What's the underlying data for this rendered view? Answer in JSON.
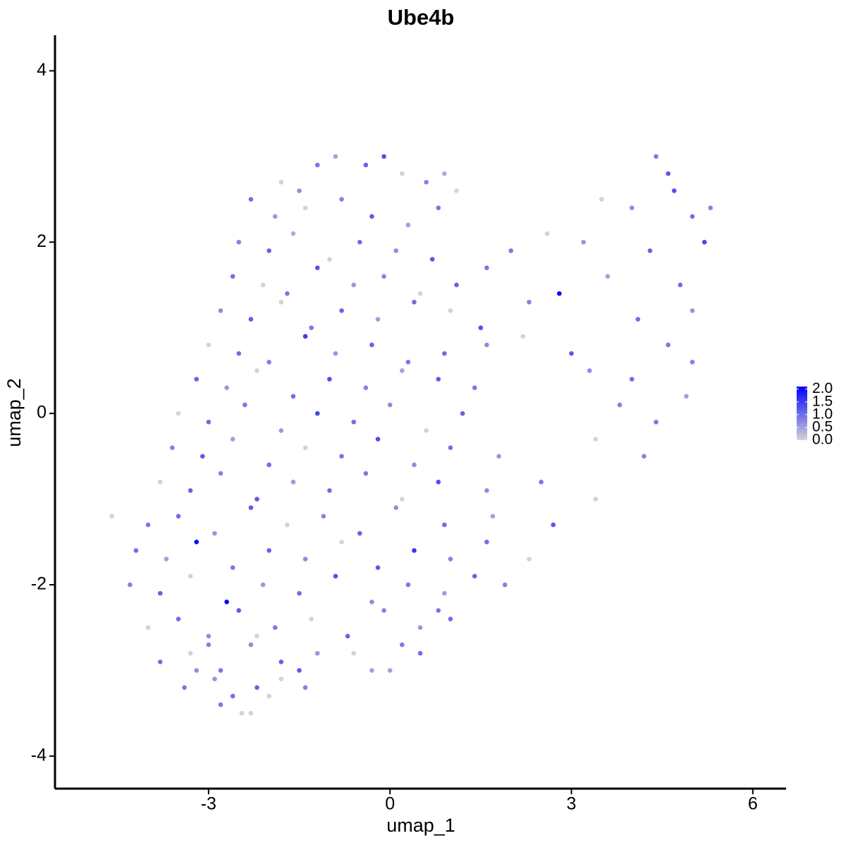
{
  "chart_data": {
    "type": "scatter",
    "title": "Ube4b",
    "x_label": "umap_1",
    "y_label": "umap_2",
    "xlim": [
      -5.54,
      6.55
    ],
    "ylim": [
      -4.38,
      4.415
    ],
    "xticks": [
      -3,
      0,
      3,
      6
    ],
    "yticks": [
      -4,
      -2,
      0,
      2,
      4
    ],
    "colors": [
      "#d3d3d3",
      "#0000ff"
    ],
    "colorlim": [
      0,
      2.1
    ],
    "colorticks": [
      {
        "value": 0,
        "label": "0.0"
      },
      {
        "value": 0.5,
        "label": "0.5"
      },
      {
        "value": 1,
        "label": "1.0"
      },
      {
        "value": 1.5,
        "label": "1.5"
      },
      {
        "value": 2,
        "label": "2.0"
      }
    ],
    "x": [
      -1.8,
      -1.2,
      -0.9,
      -0.4,
      -0.1,
      0.2,
      0.6,
      1.1,
      4.4,
      4.6,
      -1.5,
      0.9,
      -2.3,
      -1.9,
      -1.4,
      -0.8,
      -0.3,
      0.3,
      0.8,
      3.5,
      4.0,
      4.7,
      5.0,
      5.3,
      -2.5,
      -2.0,
      -1.6,
      -1.0,
      -0.5,
      0.1,
      0.7,
      2.0,
      2.6,
      3.2,
      4.3,
      5.2,
      -2.6,
      -2.1,
      -1.7,
      -1.2,
      -0.6,
      -0.1,
      0.5,
      1.1,
      1.6,
      2.8,
      3.6,
      4.8,
      -2.8,
      -2.3,
      -1.8,
      -1.3,
      -0.8,
      -0.2,
      0.4,
      1.0,
      1.5,
      2.3,
      4.1,
      5.0,
      -3.0,
      -2.5,
      -2.0,
      -1.4,
      -0.9,
      -0.3,
      0.3,
      0.9,
      1.6,
      2.2,
      3.0,
      4.6,
      -3.2,
      -2.7,
      -2.2,
      -1.6,
      -1.0,
      -0.4,
      0.2,
      0.8,
      1.4,
      3.3,
      4.0,
      5.0,
      -3.5,
      -3.0,
      -2.4,
      -1.8,
      -1.2,
      -0.6,
      0.0,
      0.6,
      1.2,
      3.8,
      4.4,
      4.9,
      -3.6,
      -3.1,
      -2.6,
      -2.0,
      -1.4,
      -0.8,
      -0.2,
      0.4,
      1.0,
      1.8,
      3.4,
      4.2,
      -3.8,
      -3.3,
      -2.8,
      -2.2,
      -1.6,
      -1.0,
      -0.4,
      0.2,
      0.8,
      1.6,
      2.5,
      3.4,
      -4.6,
      -4.0,
      -3.5,
      -2.9,
      -2.3,
      -1.7,
      -1.1,
      -0.5,
      0.1,
      0.9,
      1.7,
      2.7,
      -4.2,
      -3.7,
      -3.2,
      -2.6,
      -2.0,
      -1.4,
      -0.8,
      -0.2,
      0.4,
      1.0,
      1.6,
      2.3,
      -4.3,
      -3.8,
      -3.3,
      -2.7,
      -2.1,
      -1.5,
      -0.9,
      -0.3,
      0.3,
      0.9,
      1.4,
      1.9,
      -4.0,
      -3.5,
      -3.0,
      -2.5,
      -1.9,
      -1.3,
      -0.7,
      -0.1,
      0.5,
      1.0,
      -2.2,
      0.8,
      -3.8,
      -3.3,
      -2.8,
      -2.3,
      -1.8,
      -1.2,
      -0.6,
      0.0,
      0.5,
      -3.0,
      -1.5,
      0.2,
      -3.4,
      -2.9,
      -2.6,
      -2.3,
      -2.0,
      -1.4,
      -0.3,
      -3.2,
      -2.2,
      -1.8,
      -2.8,
      -2.45
    ],
    "y": [
      2.7,
      2.9,
      3.0,
      2.9,
      3.0,
      2.8,
      2.7,
      2.6,
      3.0,
      2.8,
      2.6,
      2.8,
      2.5,
      2.3,
      2.4,
      2.5,
      2.3,
      2.2,
      2.4,
      2.5,
      2.4,
      2.6,
      2.3,
      2.4,
      2.0,
      1.9,
      2.1,
      1.8,
      2.0,
      1.9,
      1.8,
      1.9,
      2.1,
      2.0,
      1.9,
      2.0,
      1.6,
      1.5,
      1.4,
      1.7,
      1.5,
      1.6,
      1.4,
      1.5,
      1.7,
      1.4,
      1.6,
      1.5,
      1.2,
      1.1,
      1.3,
      1.0,
      1.2,
      1.1,
      1.3,
      1.2,
      1.0,
      1.3,
      1.1,
      1.2,
      0.8,
      0.7,
      0.6,
      0.9,
      0.7,
      0.8,
      0.6,
      0.7,
      0.8,
      0.9,
      0.7,
      0.8,
      0.4,
      0.3,
      0.5,
      0.2,
      0.4,
      0.3,
      0.5,
      0.4,
      0.3,
      0.5,
      0.4,
      0.6,
      0.0,
      -0.1,
      0.1,
      -0.2,
      0.0,
      -0.1,
      0.1,
      -0.2,
      0.0,
      0.1,
      -0.1,
      0.2,
      -0.4,
      -0.5,
      -0.3,
      -0.6,
      -0.4,
      -0.5,
      -0.3,
      -0.6,
      -0.4,
      -0.5,
      -0.3,
      -0.5,
      -0.8,
      -0.9,
      -0.7,
      -1.0,
      -0.8,
      -0.9,
      -0.7,
      -1.0,
      -0.8,
      -0.9,
      -0.8,
      -1.0,
      -1.2,
      -1.3,
      -1.2,
      -1.4,
      -1.1,
      -1.3,
      -1.2,
      -1.4,
      -1.1,
      -1.3,
      -1.2,
      -1.3,
      -1.6,
      -1.7,
      -1.5,
      -1.8,
      -1.6,
      -1.7,
      -1.5,
      -1.8,
      -1.6,
      -1.7,
      -1.5,
      -1.7,
      -2.0,
      -2.1,
      -1.9,
      -2.2,
      -2.0,
      -2.1,
      -1.9,
      -2.2,
      -2.0,
      -2.1,
      -1.9,
      -2.0,
      -2.5,
      -2.4,
      -2.6,
      -2.3,
      -2.5,
      -2.4,
      -2.6,
      -2.3,
      -2.5,
      -2.4,
      -2.6,
      -2.3,
      -2.9,
      -2.8,
      -3.0,
      -2.7,
      -2.9,
      -2.8,
      -2.8,
      -3.0,
      -2.8,
      -2.7,
      -3.0,
      -2.7,
      -3.2,
      -3.1,
      -3.3,
      -3.5,
      -3.3,
      -3.2,
      -3.0,
      -3.0,
      -3.2,
      -3.1,
      -3.4,
      -3.5
    ],
    "values": [
      0,
      0.9,
      0.5,
      1.1,
      1.3,
      0,
      0.8,
      0,
      0.9,
      1.2,
      0.7,
      0.4,
      1.0,
      0.6,
      0,
      0.8,
      1.2,
      0.5,
      0.9,
      0,
      0.7,
      1.3,
      1.0,
      0.8,
      0.8,
      1.1,
      0.4,
      0,
      1.0,
      0.7,
      1.2,
      0.9,
      0,
      0.6,
      1.1,
      1.4,
      1.0,
      0,
      0.9,
      1.3,
      0.6,
      0.8,
      0,
      1.1,
      0.9,
      2.0,
      0.5,
      1.0,
      0.7,
      1.2,
      0,
      0.9,
      1.1,
      0.5,
      1.0,
      0,
      1.3,
      0.8,
      1.0,
      0.6,
      0,
      1.0,
      0.8,
      1.5,
      0.6,
      1.1,
      0.9,
      1.0,
      0.7,
      0,
      1.2,
      0.9,
      1.1,
      0.6,
      0,
      1.0,
      1.3,
      0.8,
      0.5,
      1.2,
      0.9,
      0.7,
      1.0,
      0.8,
      0,
      1.0,
      0.9,
      0.6,
      1.4,
      1.0,
      0.7,
      0,
      1.1,
      0.8,
      0.9,
      0.5,
      0.8,
      1.2,
      0.5,
      1.0,
      0,
      0.9,
      1.3,
      0.7,
      1.0,
      0.6,
      0,
      0.8,
      0,
      1.1,
      0.8,
      1.2,
      0.6,
      1.0,
      0.9,
      0,
      1.3,
      0.7,
      0.9,
      0,
      0,
      0.9,
      1.0,
      0.6,
      1.2,
      0,
      0.8,
      1.1,
      0.7,
      1.0,
      0.5,
      1.2,
      1.0,
      0.5,
      2.0,
      0.9,
      1.1,
      0.7,
      0,
      1.2,
      1.6,
      0.8,
      1.0,
      0,
      0.8,
      1.1,
      0,
      2.0,
      0.6,
      1.0,
      1.3,
      0.7,
      0.9,
      0.5,
      1.1,
      0.8,
      0,
      1.0,
      0.7,
      1.2,
      0.9,
      0,
      1.1,
      0.8,
      0.6,
      1.0,
      0,
      0.9,
      1.0,
      0,
      0.9,
      0.7,
      1.1,
      0.6,
      0,
      0.5,
      1.0,
      0.8,
      1.2,
      0.9,
      0.9,
      0.6,
      1.0,
      0,
      0,
      0.8,
      0.5,
      0.7,
      1.1,
      0,
      0.9,
      0
    ]
  }
}
